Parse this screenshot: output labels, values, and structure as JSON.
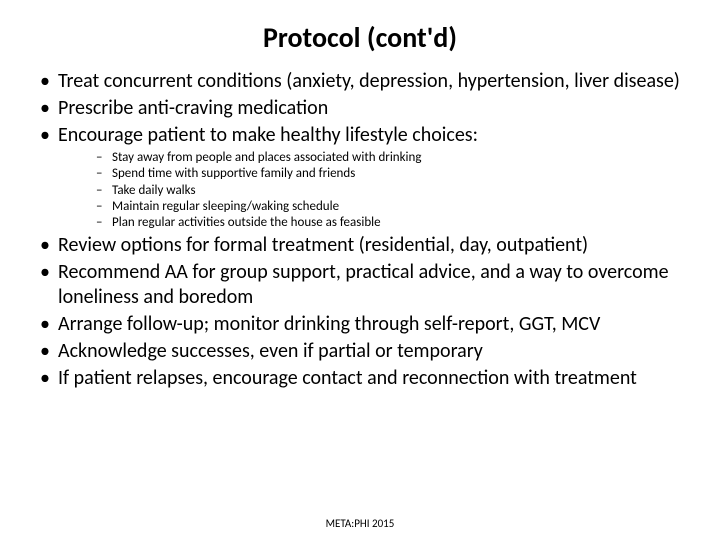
{
  "title": "Protocol (cont'd)",
  "title_fontsize": 28,
  "body_fontsize": 20,
  "sub_fontsize": 13,
  "footer_fontsize": 11,
  "text_color": "#000000",
  "background_color": "#ffffff",
  "bullets_top": [
    "Treat concurrent conditions (anxiety, depression, hypertension, liver disease)",
    "Prescribe anti-craving medication",
    "Encourage patient to make healthy lifestyle choices:"
  ],
  "sub_bullets": [
    "Stay away from people and places associated with drinking",
    "Spend time with supportive family and friends",
    "Take daily walks",
    "Maintain regular sleeping/waking schedule",
    "Plan regular activities outside the house as feasible"
  ],
  "bullets_bottom": [
    "Review options for formal treatment (residential, day, outpatient)",
    "Recommend AA for group support, practical advice, and a way to overcome loneliness and boredom",
    "Arrange follow-up; monitor drinking through self-report, GGT, MCV",
    "Acknowledge successes, even if partial or temporary",
    "If patient relapses, encourage contact and reconnection with treatment"
  ],
  "footer": "META:PHI 2015"
}
